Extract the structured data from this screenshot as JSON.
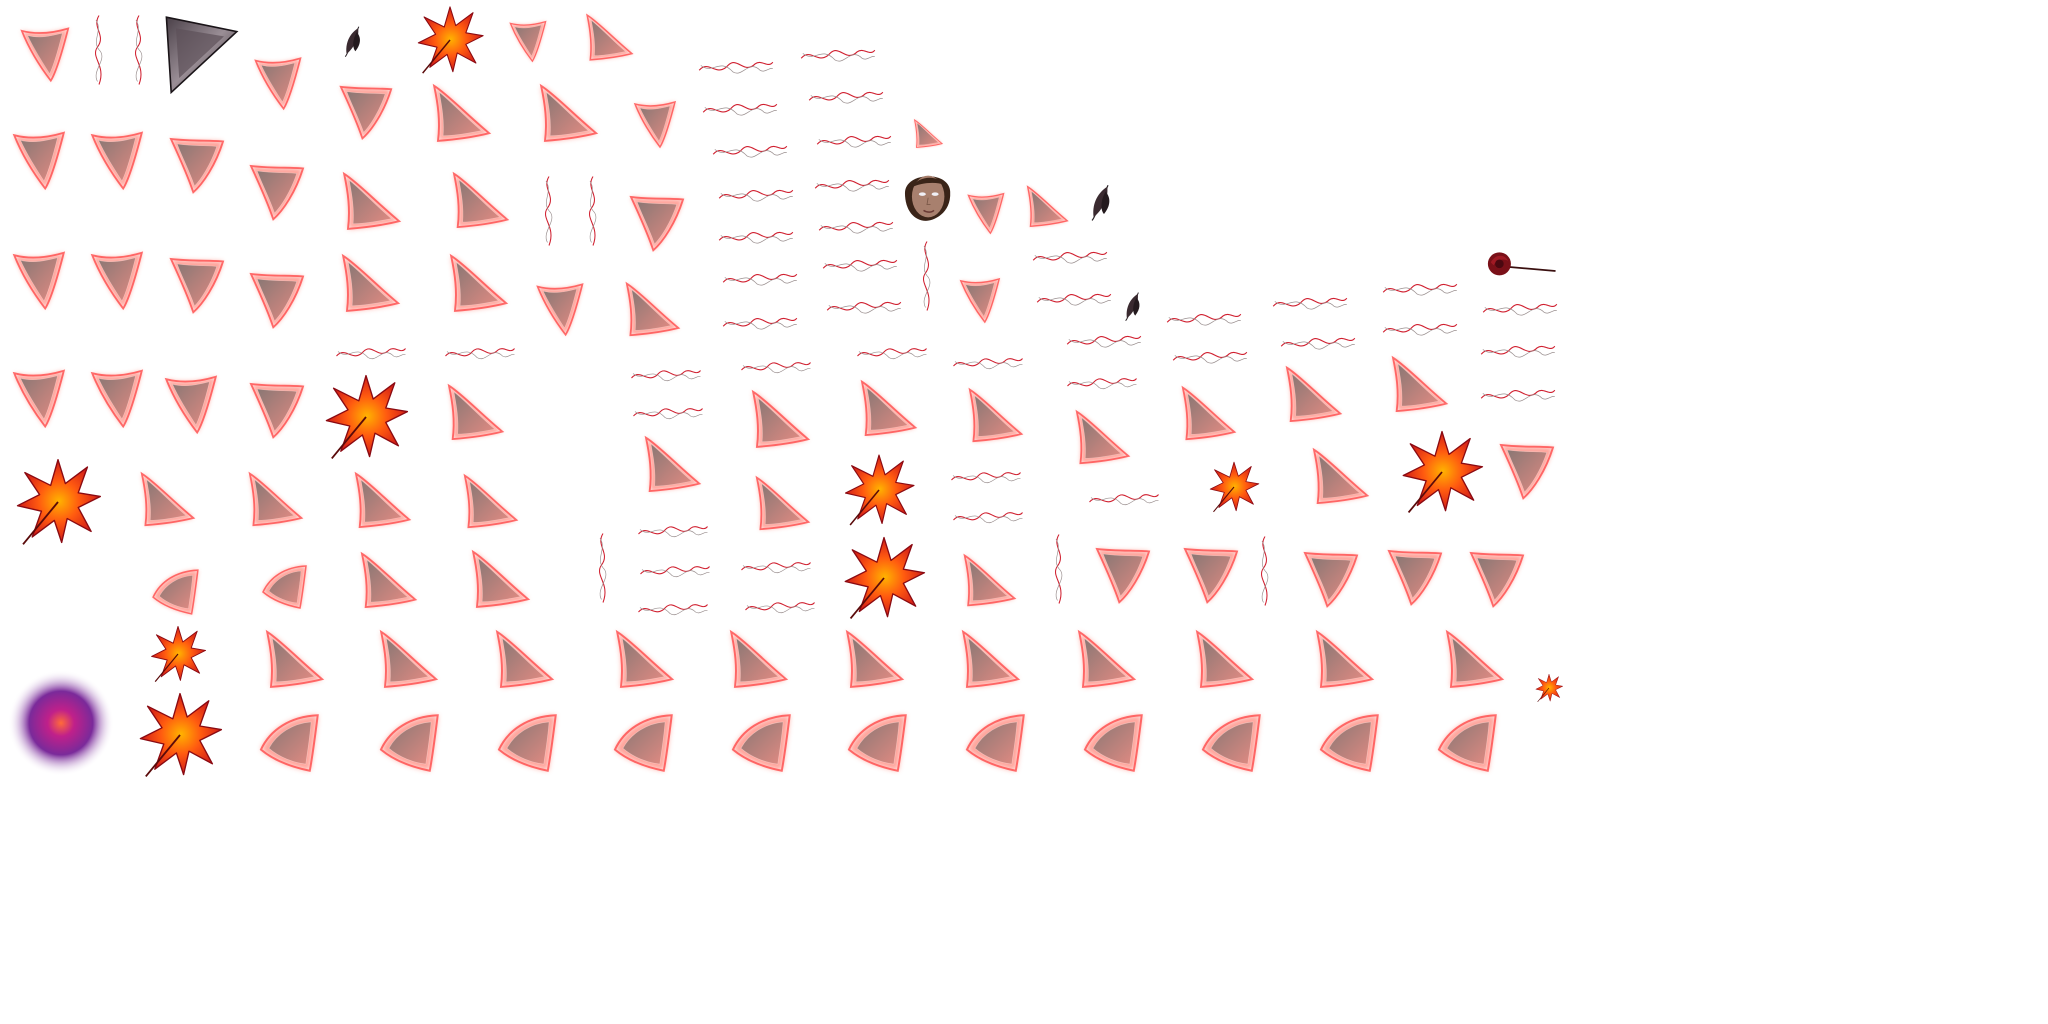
{
  "atlas": {
    "kind": "sprite-sheet",
    "background": "#ffffff",
    "colors": {
      "glow": "#ff4a4a",
      "glow_soft": "#ff9a90",
      "page_gray": "#8a7774",
      "page_pink": "#e08a82",
      "leaf_outer": "#c8101a",
      "leaf_mid": "#ff5a10",
      "leaf_core": "#ffb300",
      "vein_red": "#d02030",
      "vein_gray": "#9a8f8f",
      "orb_outer": "#7a2a9a",
      "orb_core": "#ff6a3a",
      "dark_shard": "#2a2226",
      "skin": "#a8806e",
      "hair": "#3a2418"
    },
    "sprite_types": [
      "glowing-page",
      "curled-page",
      "red-maple-leaf",
      "red-vein-streak",
      "dark-feather",
      "dark-shard",
      "hooded-face",
      "red-rose",
      "purple-glow-orb"
    ]
  }
}
